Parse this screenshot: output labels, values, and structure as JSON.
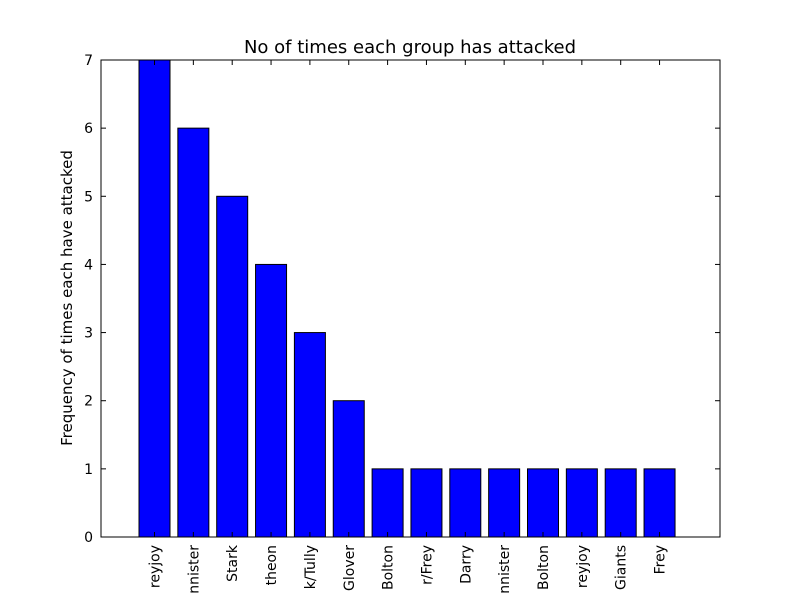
{
  "chart_data": {
    "type": "bar",
    "title": "No of times each group has attacked",
    "xlabel": "",
    "ylabel": "Frequency of times each have attacked",
    "categories": [
      "reyjoy",
      "nnister",
      "Stark",
      "theon",
      "k/Tully",
      "Glover",
      "Bolton",
      "r/Frey",
      "Darry",
      "nnister",
      "Bolton",
      "reyjoy",
      "Giants",
      "Frey"
    ],
    "values": [
      7,
      6,
      5,
      4,
      3,
      2,
      1,
      1,
      1,
      1,
      1,
      1,
      1,
      1
    ],
    "ylim": [
      0,
      7
    ],
    "yticks": [
      "0",
      "1",
      "2",
      "3",
      "4",
      "5",
      "6",
      "7"
    ],
    "grid": false,
    "bar_color": "#0000ff",
    "edge_color": "#000000"
  }
}
